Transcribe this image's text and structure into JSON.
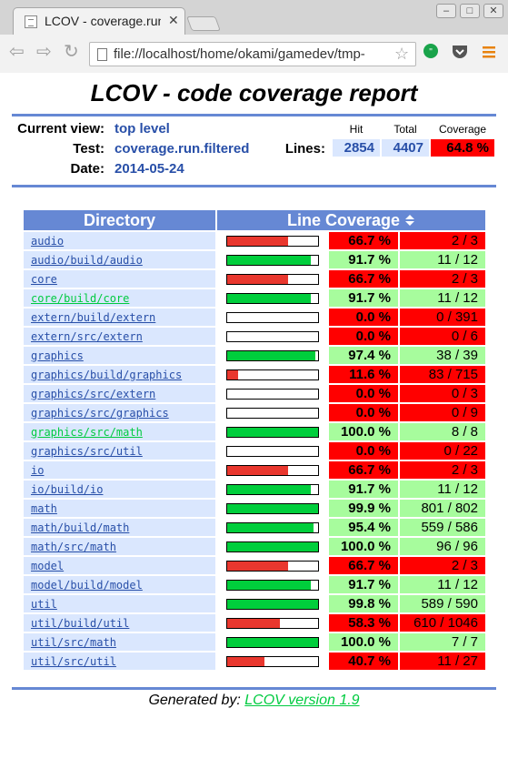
{
  "browser": {
    "tab_title": "LCOV - coverage.run.f",
    "tab_close": "✕",
    "url": "file://localhost/home/okami/gamedev/tmp-",
    "window_controls": [
      "–",
      "□",
      "✕"
    ]
  },
  "page": {
    "title": "LCOV - code coverage report",
    "current_view_label": "Current view:",
    "current_view_value": "top level",
    "test_label": "Test:",
    "test_value": "coverage.run.filtered",
    "date_label": "Date:",
    "date_value": "2014-05-24",
    "lines_label": "Lines:",
    "col_hit": "Hit",
    "col_total": "Total",
    "col_coverage": "Coverage",
    "lines_hit": "2854",
    "lines_total": "4407",
    "lines_coverage": "64.8 %",
    "table_header_directory": "Directory",
    "table_header_line_coverage": "Line Coverage",
    "footer_prefix": "Generated by: ",
    "footer_link": "LCOV version 1.9"
  },
  "colors": {
    "accent": "#6688d4",
    "link": "#284fa8",
    "visited_link": "#00cb40",
    "low": "#ff0000",
    "high": "#a7fc9d",
    "bar_low": "#e9372e",
    "bar_high": "#00ce3c"
  },
  "rows": [
    {
      "dir": "audio",
      "pct": "66.7 %",
      "frac": 0.667,
      "count": "2 / 3",
      "level": "low",
      "visited": false
    },
    {
      "dir": "audio/build/audio",
      "pct": "91.7 %",
      "frac": 0.917,
      "count": "11 / 12",
      "level": "high",
      "visited": false
    },
    {
      "dir": "core",
      "pct": "66.7 %",
      "frac": 0.667,
      "count": "2 / 3",
      "level": "low",
      "visited": false
    },
    {
      "dir": "core/build/core",
      "pct": "91.7 %",
      "frac": 0.917,
      "count": "11 / 12",
      "level": "high",
      "visited": true
    },
    {
      "dir": "extern/build/extern",
      "pct": "0.0 %",
      "frac": 0.0,
      "count": "0 / 391",
      "level": "low",
      "visited": false
    },
    {
      "dir": "extern/src/extern",
      "pct": "0.0 %",
      "frac": 0.0,
      "count": "0 / 6",
      "level": "low",
      "visited": false
    },
    {
      "dir": "graphics",
      "pct": "97.4 %",
      "frac": 0.974,
      "count": "38 / 39",
      "level": "high",
      "visited": false
    },
    {
      "dir": "graphics/build/graphics",
      "pct": "11.6 %",
      "frac": 0.116,
      "count": "83 / 715",
      "level": "low",
      "visited": false
    },
    {
      "dir": "graphics/src/extern",
      "pct": "0.0 %",
      "frac": 0.0,
      "count": "0 / 3",
      "level": "low",
      "visited": false
    },
    {
      "dir": "graphics/src/graphics",
      "pct": "0.0 %",
      "frac": 0.0,
      "count": "0 / 9",
      "level": "low",
      "visited": false
    },
    {
      "dir": "graphics/src/math",
      "pct": "100.0 %",
      "frac": 1.0,
      "count": "8 / 8",
      "level": "high",
      "visited": true
    },
    {
      "dir": "graphics/src/util",
      "pct": "0.0 %",
      "frac": 0.0,
      "count": "0 / 22",
      "level": "low",
      "visited": false
    },
    {
      "dir": "io",
      "pct": "66.7 %",
      "frac": 0.667,
      "count": "2 / 3",
      "level": "low",
      "visited": false
    },
    {
      "dir": "io/build/io",
      "pct": "91.7 %",
      "frac": 0.917,
      "count": "11 / 12",
      "level": "high",
      "visited": false
    },
    {
      "dir": "math",
      "pct": "99.9 %",
      "frac": 0.999,
      "count": "801 / 802",
      "level": "high",
      "visited": false
    },
    {
      "dir": "math/build/math",
      "pct": "95.4 %",
      "frac": 0.954,
      "count": "559 / 586",
      "level": "high",
      "visited": false
    },
    {
      "dir": "math/src/math",
      "pct": "100.0 %",
      "frac": 1.0,
      "count": "96 / 96",
      "level": "high",
      "visited": false
    },
    {
      "dir": "model",
      "pct": "66.7 %",
      "frac": 0.667,
      "count": "2 / 3",
      "level": "low",
      "visited": false
    },
    {
      "dir": "model/build/model",
      "pct": "91.7 %",
      "frac": 0.917,
      "count": "11 / 12",
      "level": "high",
      "visited": false
    },
    {
      "dir": "util",
      "pct": "99.8 %",
      "frac": 0.998,
      "count": "589 / 590",
      "level": "high",
      "visited": false
    },
    {
      "dir": "util/build/util",
      "pct": "58.3 %",
      "frac": 0.583,
      "count": "610 / 1046",
      "level": "low",
      "visited": false
    },
    {
      "dir": "util/src/math",
      "pct": "100.0 %",
      "frac": 1.0,
      "count": "7 / 7",
      "level": "high",
      "visited": false
    },
    {
      "dir": "util/src/util",
      "pct": "40.7 %",
      "frac": 0.407,
      "count": "11 / 27",
      "level": "low",
      "visited": false
    }
  ]
}
